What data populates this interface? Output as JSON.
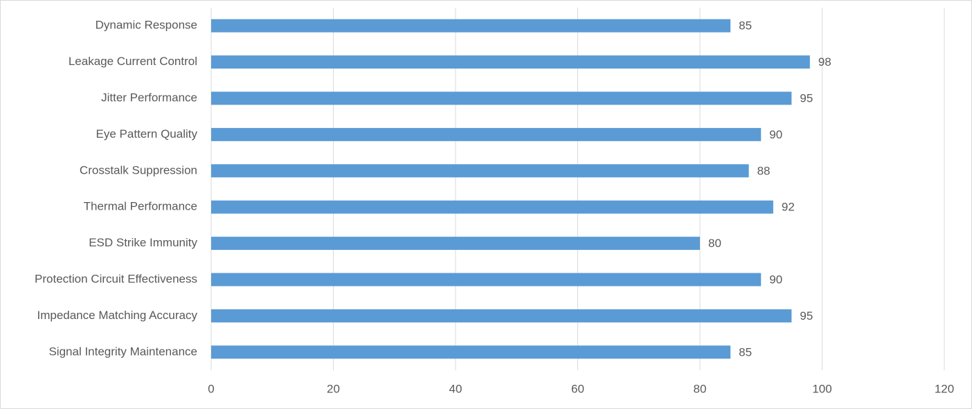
{
  "chart_data": {
    "type": "barh",
    "categories": [
      "Dynamic Response",
      "Leakage Current Control",
      "Jitter Performance",
      "Eye Pattern Quality",
      "Crosstalk Suppression",
      "Thermal Performance",
      "ESD Strike Immunity",
      "Protection Circuit Effectiveness",
      "Impedance Matching Accuracy",
      "Signal Integrity Maintenance"
    ],
    "values": [
      85,
      98,
      95,
      90,
      88,
      92,
      80,
      90,
      95,
      85
    ],
    "color": "#5b9bd5",
    "xlim": [
      0,
      120
    ],
    "xticks": [
      0,
      20,
      40,
      60,
      80,
      100,
      120
    ],
    "grid": true,
    "data_labels": true
  }
}
